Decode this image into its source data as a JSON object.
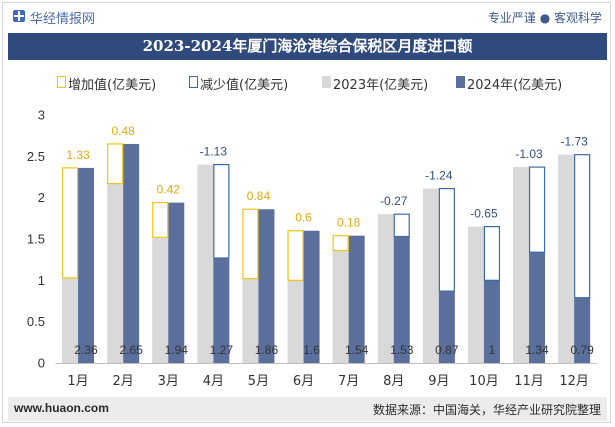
{
  "header": {
    "brand": "华经情报网",
    "slogan": "专业严谨 ● 客观科学",
    "logo_icon": "huajing-logo-icon"
  },
  "chart_data": {
    "type": "bar",
    "title": "2023-2024年厦门海沧港综合保税区月度进口额",
    "categories": [
      "1月",
      "2月",
      "3月",
      "4月",
      "5月",
      "6月",
      "7月",
      "8月",
      "9月",
      "10月",
      "11月",
      "12月"
    ],
    "series": [
      {
        "name": "2023年(亿美元)",
        "values": [
          1.03,
          2.17,
          1.52,
          2.4,
          1.02,
          1.0,
          1.36,
          1.8,
          2.11,
          1.65,
          2.37,
          2.52
        ],
        "color": "#d9d9d9"
      },
      {
        "name": "2024年(亿美元)",
        "values": [
          2.36,
          2.65,
          1.94,
          1.27,
          1.86,
          1.6,
          1.54,
          1.53,
          0.87,
          1,
          1.34,
          0.79
        ],
        "color": "#5b6f9c"
      }
    ],
    "change": {
      "increase_name": "增加值(亿美元)",
      "decrease_name": "减少值(亿美元)",
      "values": [
        1.33,
        0.48,
        0.42,
        -1.13,
        0.84,
        0.6,
        0.18,
        -0.27,
        -1.24,
        -0.65,
        -1.03,
        -1.73
      ],
      "increase_color": "#f0c419",
      "decrease_color": "#3d6aa3",
      "increase_label_color": "#e0aa12",
      "decrease_label_color": "#34507e"
    },
    "ylim": [
      0,
      3
    ],
    "yticks": [
      0,
      0.5,
      1,
      1.5,
      2,
      2.5,
      3
    ],
    "grid": false,
    "legend_position": "top"
  },
  "footer": {
    "website": "www.huaon.com",
    "source": "数据来源：中国海关，华经产业研究院整理"
  },
  "colors": {
    "title_bar": "#2f4a7d",
    "footer_bg": "#ececec",
    "axis": "#bfbfbf",
    "text": "#333333"
  }
}
